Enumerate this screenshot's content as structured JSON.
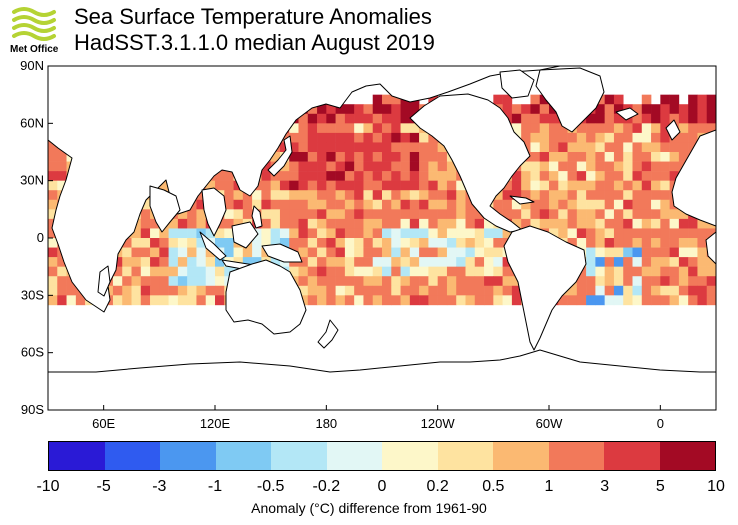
{
  "header": {
    "logo_text": "Met Office",
    "title": "Sea Surface Temperature Anomalies",
    "subtitle": "HadSST.3.1.1.0 median August 2019"
  },
  "map": {
    "lat_labels": [
      "90N",
      "60N",
      "30N",
      "0",
      "30S",
      "60S",
      "90S"
    ],
    "lon_labels": [
      "60E",
      "120E",
      "180",
      "120W",
      "60W",
      "0"
    ],
    "land_color": "#ffffff",
    "coast_color": "#000000"
  },
  "colorbar": {
    "colors": [
      "#2a1ad6",
      "#2f5bf0",
      "#4b97f0",
      "#7fcaf3",
      "#b3e7f6",
      "#e2f7f5",
      "#fdf7c9",
      "#fee3a0",
      "#fbb972",
      "#f2795a",
      "#dc3a40",
      "#a30a24"
    ],
    "labels": [
      "-10",
      "-5",
      "-3",
      "-1",
      "-0.5",
      "-0.2",
      "0",
      "0.2",
      "0.5",
      "1",
      "3",
      "5",
      "10"
    ],
    "caption": "Anomaly (°C) difference from 1961-90"
  }
}
